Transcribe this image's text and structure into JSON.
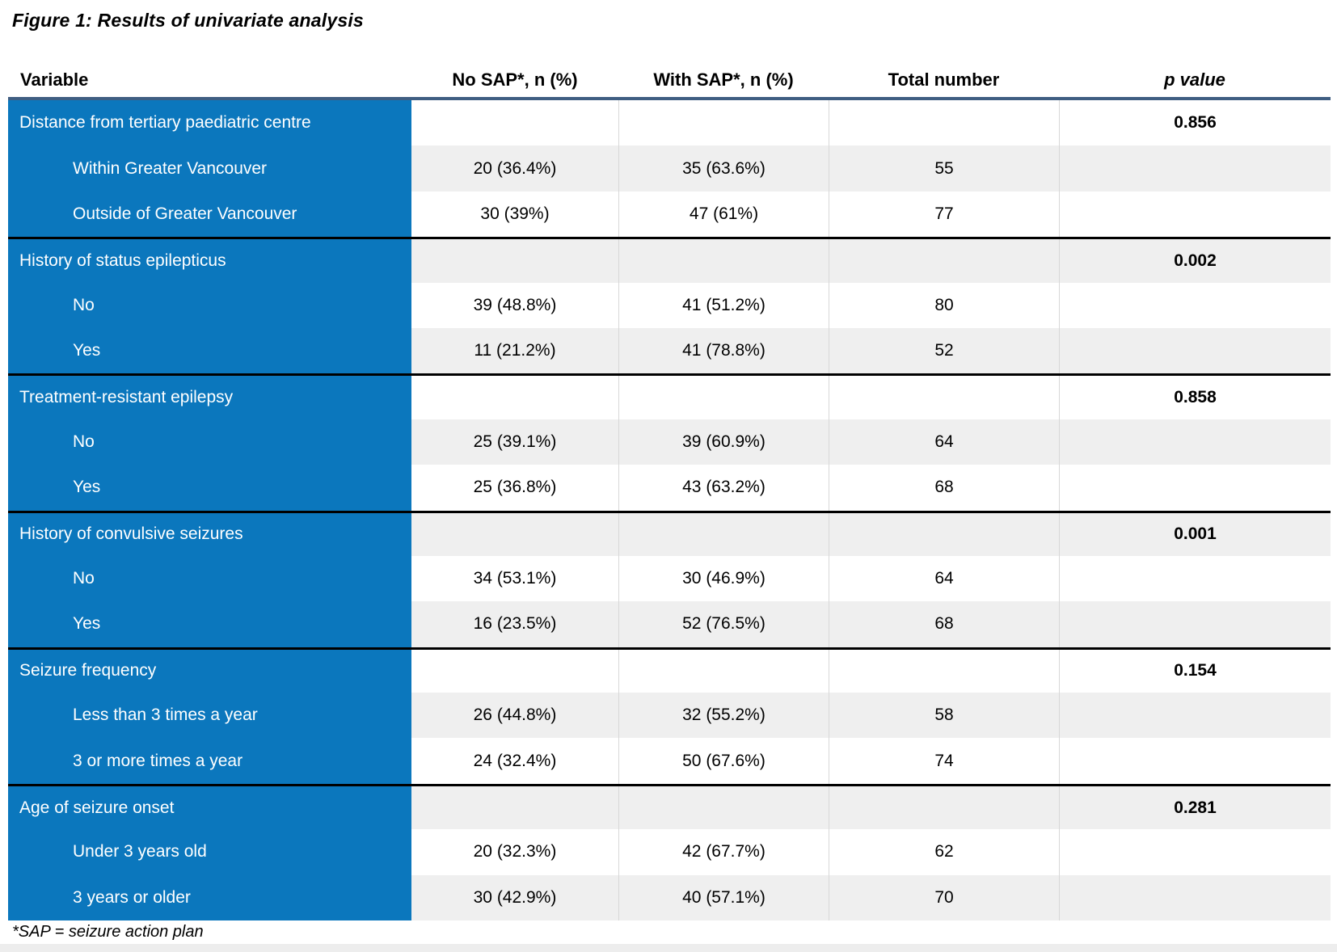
{
  "title": "Figure 1: Results of univariate analysis",
  "footnote": "*SAP = seizure action plan",
  "colors": {
    "accent_blue": "#0b77bd",
    "header_rule": "#3f5e82",
    "alt_row": "#efefef",
    "section_divider": "#000000"
  },
  "table": {
    "headers": [
      "Variable",
      "No SAP*, n (%)",
      "With SAP*, n (%)",
      "Total number",
      "p value"
    ],
    "rows": [
      {
        "label": "Distance from tertiary paediatric centre",
        "no_sap": "",
        "with_sap": "",
        "total": "",
        "p": "0.856"
      },
      {
        "label": "Within Greater Vancouver",
        "no_sap": "20 (36.4%)",
        "with_sap": "35 (63.6%)",
        "total": "55",
        "p": ""
      },
      {
        "label": "Outside of Greater Vancouver",
        "no_sap": "30 (39%)",
        "with_sap": "47 (61%)",
        "total": "77",
        "p": ""
      },
      {
        "label": "History of status epilepticus",
        "no_sap": "",
        "with_sap": "",
        "total": "",
        "p": "0.002"
      },
      {
        "label": "No",
        "no_sap": "39 (48.8%)",
        "with_sap": "41 (51.2%)",
        "total": "80",
        "p": ""
      },
      {
        "label": "Yes",
        "no_sap": "11 (21.2%)",
        "with_sap": "41 (78.8%)",
        "total": "52",
        "p": ""
      },
      {
        "label": "Treatment-resistant epilepsy",
        "no_sap": "",
        "with_sap": "",
        "total": "",
        "p": "0.858"
      },
      {
        "label": "No",
        "no_sap": "25 (39.1%)",
        "with_sap": "39 (60.9%)",
        "total": "64",
        "p": ""
      },
      {
        "label": "Yes",
        "no_sap": "25 (36.8%)",
        "with_sap": "43 (63.2%)",
        "total": "68",
        "p": ""
      },
      {
        "label": "History of convulsive seizures",
        "no_sap": "",
        "with_sap": "",
        "total": "",
        "p": "0.001"
      },
      {
        "label": "No",
        "no_sap": "34 (53.1%)",
        "with_sap": "30 (46.9%)",
        "total": "64",
        "p": ""
      },
      {
        "label": "Yes",
        "no_sap": "16 (23.5%)",
        "with_sap": "52 (76.5%)",
        "total": "68",
        "p": ""
      },
      {
        "label": "Seizure frequency",
        "no_sap": "",
        "with_sap": "",
        "total": "",
        "p": "0.154"
      },
      {
        "label": "Less than 3 times a year",
        "no_sap": "26 (44.8%)",
        "with_sap": "32 (55.2%)",
        "total": "58",
        "p": ""
      },
      {
        "label": "3 or more times a year",
        "no_sap": "24 (32.4%)",
        "with_sap": "50 (67.6%)",
        "total": "74",
        "p": ""
      },
      {
        "label": "Age of seizure onset",
        "no_sap": "",
        "with_sap": "",
        "total": "",
        "p": "0.281"
      },
      {
        "label": "Under 3 years old",
        "no_sap": "20 (32.3%)",
        "with_sap": "42 (67.7%)",
        "total": "62",
        "p": ""
      },
      {
        "label": "3 years or older",
        "no_sap": "30 (42.9%)",
        "with_sap": "40 (57.1%)",
        "total": "70",
        "p": ""
      }
    ]
  }
}
